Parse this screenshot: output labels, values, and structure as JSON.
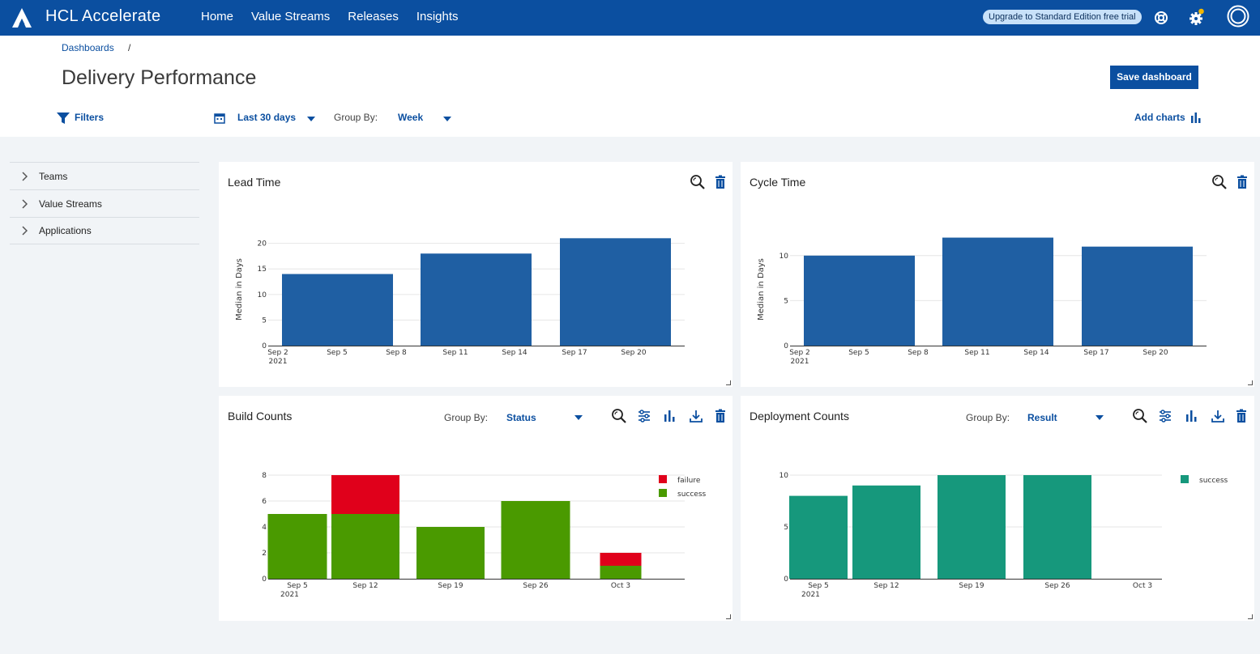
{
  "topbar": {
    "app_title": "HCL Accelerate",
    "nav": [
      "Home",
      "Value Streams",
      "Releases",
      "Insights"
    ],
    "upgrade_label": "Upgrade to Standard Edition free trial",
    "icons": [
      "help-icon",
      "gear-icon",
      "user-icon"
    ],
    "notification_color": "#f2b600"
  },
  "header": {
    "breadcrumb": "Dashboards",
    "breadcrumb_sep": "/",
    "title": "Delivery Performance",
    "save_label": "Save dashboard",
    "filters_label": "Filters",
    "date_range": "Last 30 days",
    "group_by_label": "Group By:",
    "group_by_value": "Week",
    "add_charts_label": "Add charts"
  },
  "sidebar": {
    "items": [
      "Teams",
      "Value Streams",
      "Applications"
    ]
  },
  "cards": {
    "lead_time": {
      "title": "Lead Time"
    },
    "cycle_time": {
      "title": "Cycle Time"
    },
    "build_counts": {
      "title": "Build Counts",
      "group_by_label": "Group By:",
      "group_by_value": "Status"
    },
    "deployment_counts": {
      "title": "Deployment Counts",
      "group_by_label": "Group By:",
      "group_by_value": "Result"
    }
  },
  "chart_data": [
    {
      "id": "lead_time",
      "type": "bar",
      "title": "Lead Time",
      "ylabel": "Median in Days",
      "ylim": [
        0,
        22
      ],
      "yticks": [
        0,
        5,
        10,
        15,
        20
      ],
      "xtick_labels": [
        "Sep 2",
        "Sep 5",
        "Sep 8",
        "Sep 11",
        "Sep 14",
        "Sep 17",
        "Sep 20"
      ],
      "year_label": "2021",
      "categories": [
        "Sep 5",
        "Sep 12",
        "Sep 19"
      ],
      "values": [
        14,
        18,
        21
      ],
      "color": "#1f5fa3",
      "grid": true
    },
    {
      "id": "cycle_time",
      "type": "bar",
      "title": "Cycle Time",
      "ylabel": "Median in Days",
      "ylim": [
        0,
        12.5
      ],
      "yticks": [
        0,
        5,
        10
      ],
      "xtick_labels": [
        "Sep 2",
        "Sep 5",
        "Sep 8",
        "Sep 11",
        "Sep 14",
        "Sep 17",
        "Sep 20"
      ],
      "year_label": "2021",
      "categories": [
        "Sep 5",
        "Sep 12",
        "Sep 19"
      ],
      "values": [
        10,
        12,
        11
      ],
      "color": "#1f5fa3",
      "grid": true
    },
    {
      "id": "build_counts",
      "type": "bar",
      "stacked": true,
      "title": "Build Counts",
      "ylim": [
        0,
        8
      ],
      "yticks": [
        0,
        2,
        4,
        6,
        8
      ],
      "categories": [
        "Sep 5",
        "Sep 12",
        "Sep 19",
        "Sep 26",
        "Oct 3"
      ],
      "year_label": "2021",
      "series": [
        {
          "name": "success",
          "values": [
            5,
            5,
            4,
            6,
            1
          ],
          "color": "#4a9a00"
        },
        {
          "name": "failure",
          "values": [
            0,
            3,
            0,
            0,
            1
          ],
          "color": "#e0001b"
        }
      ],
      "legend": "top-right",
      "grid": true
    },
    {
      "id": "deployment_counts",
      "type": "bar",
      "title": "Deployment Counts",
      "ylim": [
        0,
        10
      ],
      "yticks": [
        0,
        5,
        10
      ],
      "categories": [
        "Sep 5",
        "Sep 12",
        "Sep 19",
        "Sep 26",
        "Oct 3"
      ],
      "year_label": "2021",
      "series": [
        {
          "name": "success",
          "values": [
            8,
            9,
            10,
            10,
            0
          ],
          "color": "#16987c"
        }
      ],
      "legend": "top-right",
      "grid": true
    }
  ]
}
